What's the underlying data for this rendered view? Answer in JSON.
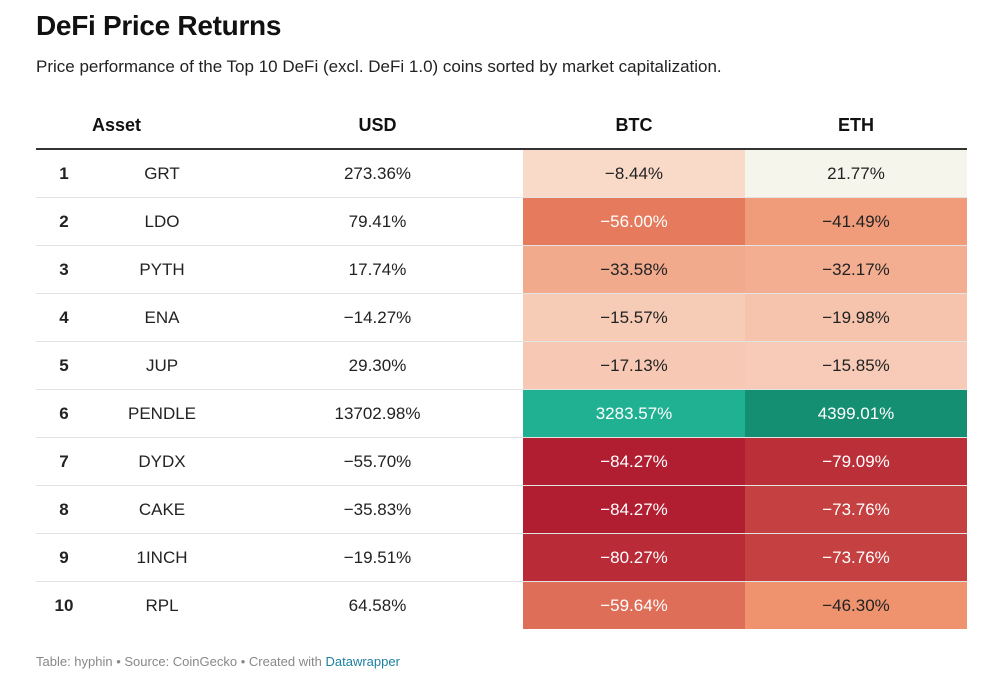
{
  "title": "DeFi Price Returns",
  "subtitle": "Price performance of the Top 10 DeFi (excl. DeFi 1.0) coins sorted by market capitalization.",
  "footer": {
    "prefix": "Table: hyphin • Source: CoinGecko • Created with ",
    "link": "Datawrapper"
  },
  "chart_data": {
    "type": "table",
    "title": "DeFi Price Returns",
    "subtitle": "Price performance of the Top 10 DeFi (excl. DeFi 1.0) coins sorted by market capitalization.",
    "columns": [
      "",
      "Asset",
      "USD",
      "BTC",
      "ETH"
    ],
    "heatmap_columns": [
      "BTC",
      "ETH"
    ],
    "rows": [
      {
        "rank": "1",
        "asset": "GRT",
        "usd": "273.36%",
        "btc": "−8.44%",
        "eth": "21.77%",
        "btc_value": -8.44,
        "eth_value": 21.77
      },
      {
        "rank": "2",
        "asset": "LDO",
        "usd": "79.41%",
        "btc": "−56.00%",
        "eth": "−41.49%",
        "btc_value": -56.0,
        "eth_value": -41.49
      },
      {
        "rank": "3",
        "asset": "PYTH",
        "usd": "17.74%",
        "btc": "−33.58%",
        "eth": "−32.17%",
        "btc_value": -33.58,
        "eth_value": -32.17
      },
      {
        "rank": "4",
        "asset": "ENA",
        "usd": "−14.27%",
        "btc": "−15.57%",
        "eth": "−19.98%",
        "btc_value": -15.57,
        "eth_value": -19.98
      },
      {
        "rank": "5",
        "asset": "JUP",
        "usd": "29.30%",
        "btc": "−17.13%",
        "eth": "−15.85%",
        "btc_value": -17.13,
        "eth_value": -15.85
      },
      {
        "rank": "6",
        "asset": "PENDLE",
        "usd": "13702.98%",
        "btc": "3283.57%",
        "eth": "4399.01%",
        "btc_value": 3283.57,
        "eth_value": 4399.01
      },
      {
        "rank": "7",
        "asset": "DYDX",
        "usd": "−55.70%",
        "btc": "−84.27%",
        "eth": "−79.09%",
        "btc_value": -84.27,
        "eth_value": -79.09
      },
      {
        "rank": "8",
        "asset": "CAKE",
        "usd": "−35.83%",
        "btc": "−84.27%",
        "eth": "−73.76%",
        "btc_value": -84.27,
        "eth_value": -73.76
      },
      {
        "rank": "9",
        "asset": "1INCH",
        "usd": "−19.51%",
        "btc": "−80.27%",
        "eth": "−73.76%",
        "btc_value": -80.27,
        "eth_value": -73.76
      },
      {
        "rank": "10",
        "asset": "RPL",
        "usd": "64.58%",
        "btc": "−59.64%",
        "eth": "−46.30%",
        "btc_value": -59.64,
        "eth_value": -46.3
      }
    ],
    "colors": {
      "negative_strong": "#b01c30",
      "negative_light": "#fbe9dc",
      "neutral": "#f5f5ec",
      "positive_btc": "#20b193",
      "positive_eth": "#158f72"
    }
  }
}
